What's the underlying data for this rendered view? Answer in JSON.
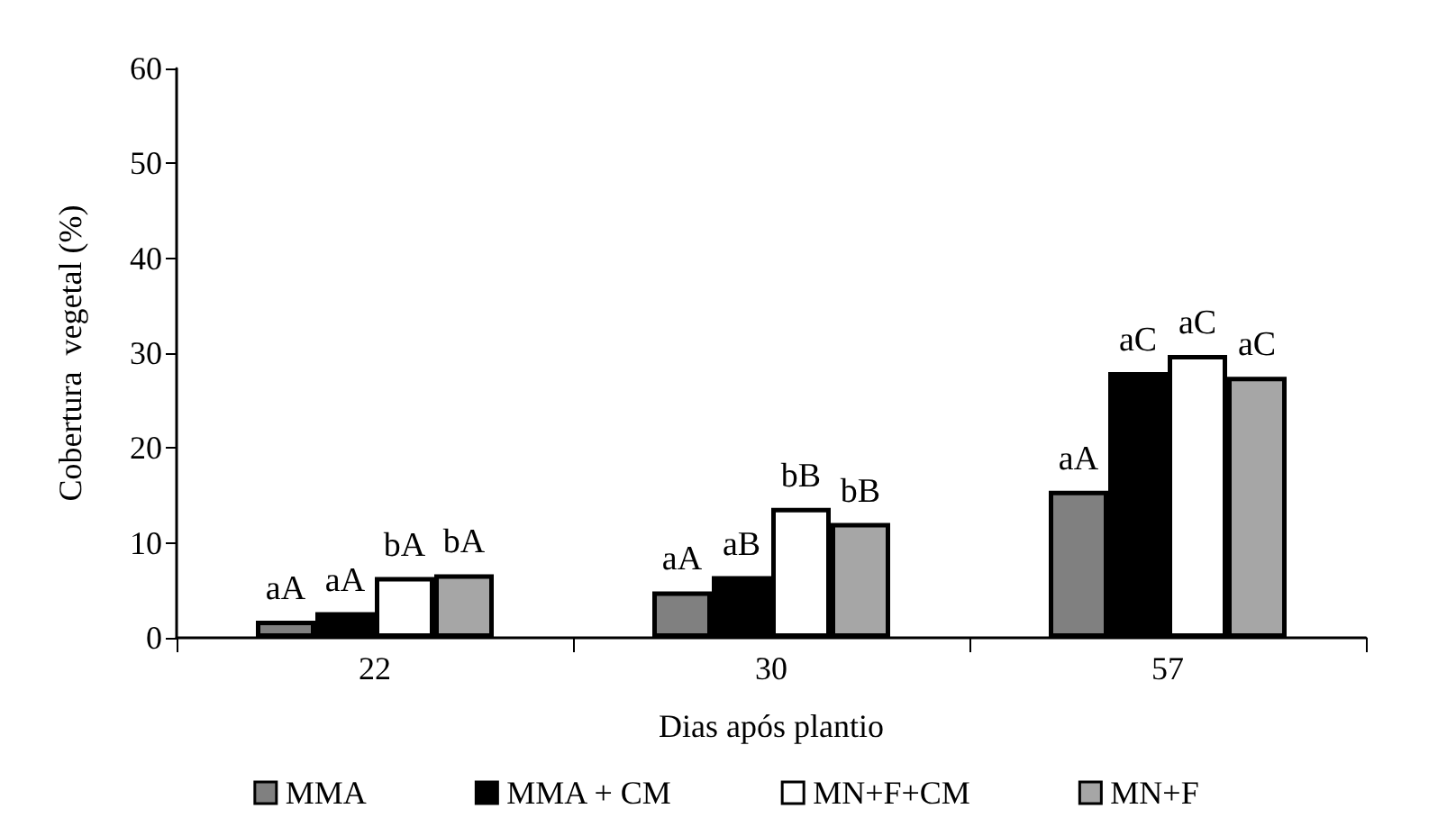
{
  "chart_data": {
    "type": "bar",
    "xlabel": "Dias após plantio",
    "ylabel": "Cobertura  vegetal (%)",
    "categories": [
      "22",
      "30",
      "57"
    ],
    "series": [
      {
        "name": "MMA",
        "color": "#808080",
        "values": [
          1.8,
          4.9,
          15.5
        ],
        "value_labels": [
          "aA",
          "aA",
          "aA"
        ]
      },
      {
        "name": "MMA + CM",
        "color": "#000000",
        "values": [
          2.7,
          6.5,
          28.0
        ],
        "value_labels": [
          "aA",
          "aB",
          "aC"
        ]
      },
      {
        "name": "MN+F+CM",
        "color": "#ffffff",
        "values": [
          6.4,
          13.7,
          29.8
        ],
        "value_labels": [
          "bA",
          "bB",
          "aC"
        ]
      },
      {
        "name": "MN+F",
        "color": "#a6a6a6",
        "values": [
          6.7,
          12.1,
          27.5
        ],
        "value_labels": [
          "bA",
          "bB",
          "aC"
        ]
      }
    ],
    "ylim": [
      0,
      60
    ],
    "yticks": [
      0,
      10,
      20,
      30,
      40,
      50,
      60
    ],
    "grid": false,
    "legend": "bottom"
  }
}
